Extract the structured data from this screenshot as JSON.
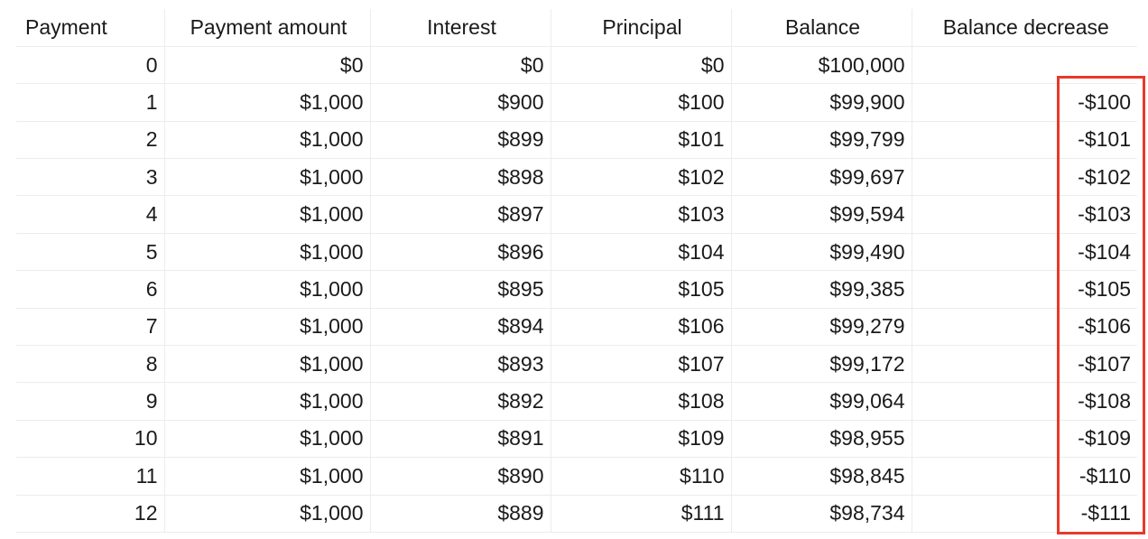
{
  "table": {
    "headers": [
      "Payment",
      "Payment amount",
      "Interest",
      "Principal",
      "Balance",
      "Balance decrease"
    ],
    "rows": [
      [
        "0",
        "$0",
        "$0",
        "$0",
        "$100,000",
        ""
      ],
      [
        "1",
        "$1,000",
        "$900",
        "$100",
        "$99,900",
        "-$100"
      ],
      [
        "2",
        "$1,000",
        "$899",
        "$101",
        "$99,799",
        "-$101"
      ],
      [
        "3",
        "$1,000",
        "$898",
        "$102",
        "$99,697",
        "-$102"
      ],
      [
        "4",
        "$1,000",
        "$897",
        "$103",
        "$99,594",
        "-$103"
      ],
      [
        "5",
        "$1,000",
        "$896",
        "$104",
        "$99,490",
        "-$104"
      ],
      [
        "6",
        "$1,000",
        "$895",
        "$105",
        "$99,385",
        "-$105"
      ],
      [
        "7",
        "$1,000",
        "$894",
        "$106",
        "$99,279",
        "-$106"
      ],
      [
        "8",
        "$1,000",
        "$893",
        "$107",
        "$99,172",
        "-$107"
      ],
      [
        "9",
        "$1,000",
        "$892",
        "$108",
        "$99,064",
        "-$108"
      ],
      [
        "10",
        "$1,000",
        "$891",
        "$109",
        "$98,955",
        "-$109"
      ],
      [
        "11",
        "$1,000",
        "$890",
        "$110",
        "$98,845",
        "-$110"
      ],
      [
        "12",
        "$1,000",
        "$889",
        "$111",
        "$98,734",
        "-$111"
      ]
    ]
  },
  "highlight": {
    "column": "Balance decrease",
    "color": "#e8392a"
  }
}
